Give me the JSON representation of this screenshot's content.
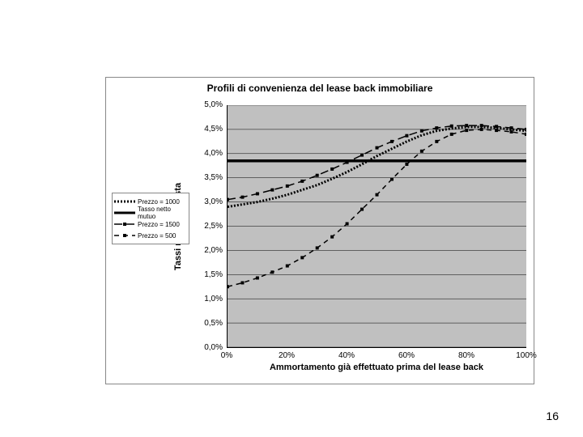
{
  "title": "Profili di convenienza del lease back immobiliare",
  "y_axis_label": "Tassi netti d'imposta",
  "x_axis_label": "Ammortamento già effettuato prima del lease back",
  "page_number": "16",
  "chart": {
    "type": "line",
    "background_color": "#c0c0c0",
    "grid_color": "#000000",
    "xlim": [
      0,
      100
    ],
    "ylim": [
      0,
      5
    ],
    "x_ticks": [
      {
        "v": 0,
        "label": "0%"
      },
      {
        "v": 20,
        "label": "20%"
      },
      {
        "v": 40,
        "label": "40%"
      },
      {
        "v": 60,
        "label": "60%"
      },
      {
        "v": 80,
        "label": "80%"
      },
      {
        "v": 100,
        "label": "100%"
      }
    ],
    "y_ticks": [
      {
        "v": 0.0,
        "label": "0,0%"
      },
      {
        "v": 0.5,
        "label": "0,5%"
      },
      {
        "v": 1.0,
        "label": "1,0%"
      },
      {
        "v": 1.5,
        "label": "1,5%"
      },
      {
        "v": 2.0,
        "label": "2,0%"
      },
      {
        "v": 2.5,
        "label": "2,5%"
      },
      {
        "v": 3.0,
        "label": "3,0%"
      },
      {
        "v": 3.5,
        "label": "3,5%"
      },
      {
        "v": 4.0,
        "label": "4,0%"
      },
      {
        "v": 4.5,
        "label": "4,5%"
      },
      {
        "v": 5.0,
        "label": "5,0%"
      }
    ],
    "series": [
      {
        "name": "Prezzo = 1000",
        "color": "#000000",
        "line_width": 3,
        "dash": "2,2",
        "marker": "none",
        "data": [
          [
            0,
            2.9
          ],
          [
            5,
            2.95
          ],
          [
            10,
            3.0
          ],
          [
            15,
            3.07
          ],
          [
            20,
            3.15
          ],
          [
            25,
            3.25
          ],
          [
            30,
            3.35
          ],
          [
            35,
            3.48
          ],
          [
            40,
            3.62
          ],
          [
            45,
            3.78
          ],
          [
            50,
            3.95
          ],
          [
            55,
            4.1
          ],
          [
            60,
            4.25
          ],
          [
            65,
            4.38
          ],
          [
            70,
            4.47
          ],
          [
            75,
            4.52
          ],
          [
            80,
            4.55
          ],
          [
            85,
            4.55
          ],
          [
            90,
            4.53
          ],
          [
            95,
            4.5
          ],
          [
            100,
            4.47
          ]
        ]
      },
      {
        "name": "Tasso netto mutuo",
        "color": "#000000",
        "line_width": 3.5,
        "dash": "none",
        "marker": "none",
        "data": [
          [
            0,
            3.85
          ],
          [
            100,
            3.85
          ]
        ]
      },
      {
        "name": "Prezzo = 1500",
        "color": "#000000",
        "line_width": 1.5,
        "dash": "10,5",
        "marker": "square",
        "marker_size": 4,
        "data": [
          [
            0,
            3.05
          ],
          [
            5,
            3.1
          ],
          [
            10,
            3.17
          ],
          [
            15,
            3.25
          ],
          [
            20,
            3.33
          ],
          [
            25,
            3.43
          ],
          [
            30,
            3.55
          ],
          [
            35,
            3.68
          ],
          [
            40,
            3.82
          ],
          [
            45,
            3.97
          ],
          [
            50,
            4.12
          ],
          [
            55,
            4.25
          ],
          [
            60,
            4.37
          ],
          [
            65,
            4.47
          ],
          [
            70,
            4.53
          ],
          [
            75,
            4.57
          ],
          [
            80,
            4.58
          ],
          [
            85,
            4.58
          ],
          [
            90,
            4.56
          ],
          [
            95,
            4.53
          ],
          [
            100,
            4.5
          ]
        ]
      },
      {
        "name": "Prezzo = 500",
        "color": "#000000",
        "line_width": 1.5,
        "dash": "6,5",
        "marker": "square",
        "marker_size": 4,
        "data": [
          [
            0,
            1.25
          ],
          [
            5,
            1.33
          ],
          [
            10,
            1.43
          ],
          [
            15,
            1.55
          ],
          [
            20,
            1.68
          ],
          [
            25,
            1.85
          ],
          [
            30,
            2.05
          ],
          [
            35,
            2.28
          ],
          [
            40,
            2.55
          ],
          [
            45,
            2.85
          ],
          [
            50,
            3.15
          ],
          [
            55,
            3.47
          ],
          [
            60,
            3.78
          ],
          [
            65,
            4.05
          ],
          [
            70,
            4.25
          ],
          [
            75,
            4.4
          ],
          [
            80,
            4.48
          ],
          [
            85,
            4.5
          ],
          [
            90,
            4.48
          ],
          [
            95,
            4.45
          ],
          [
            100,
            4.4
          ]
        ]
      }
    ]
  }
}
